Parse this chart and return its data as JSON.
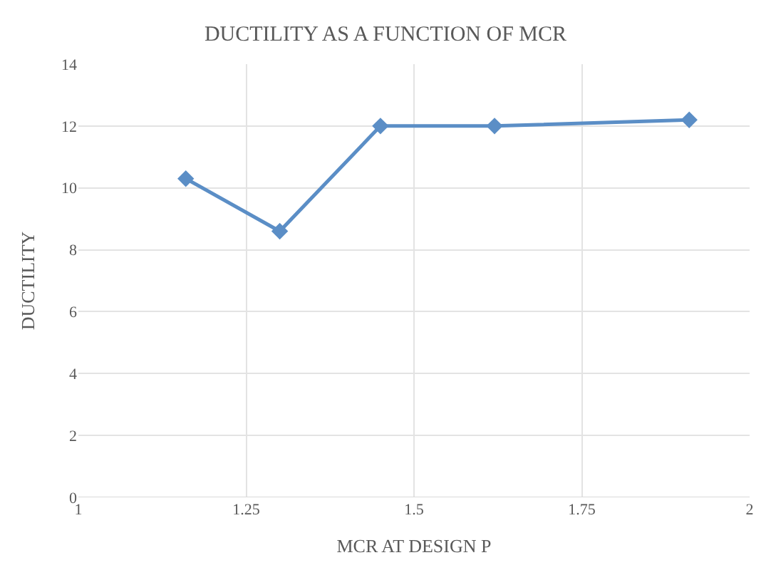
{
  "chart_data": {
    "type": "line",
    "title": "DUCTILITY AS A FUNCTION OF MCR",
    "xlabel": "MCR AT DESIGN P",
    "ylabel": "DUCTILITY",
    "x": [
      1.16,
      1.3,
      1.45,
      1.62,
      1.91
    ],
    "series": [
      {
        "color": "#5b8ec6",
        "values": [
          10.3,
          8.6,
          12.0,
          12.0,
          12.2
        ]
      }
    ],
    "xlim": [
      1,
      2
    ],
    "xticks": [
      1,
      1.25,
      1.5,
      1.75,
      2
    ],
    "ylim": [
      0,
      14
    ],
    "yticks": [
      0,
      2,
      4,
      6,
      8,
      10,
      12,
      14
    ],
    "grid": true,
    "marker": "diamond",
    "line_style": "solid"
  }
}
